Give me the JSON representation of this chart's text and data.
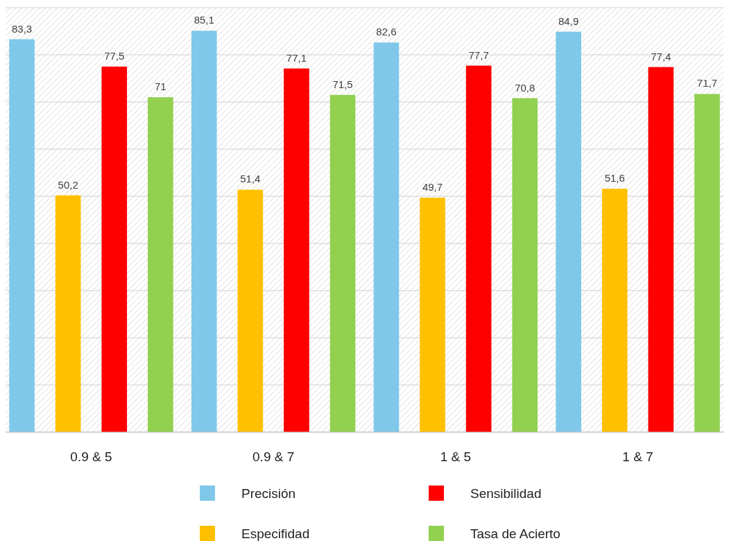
{
  "chart_data": {
    "type": "bar",
    "categories": [
      "0.9 & 5",
      "0.9 & 7",
      "1 & 5",
      "1 & 7"
    ],
    "series": [
      {
        "name": "Precisión",
        "color": "#7fc8ea",
        "values": [
          83.3,
          85.1,
          82.6,
          84.9
        ],
        "value_labels": [
          "83,3",
          "85,1",
          "82,6",
          "84,9"
        ]
      },
      {
        "name": "Especifidad",
        "color": "#ffc000",
        "values": [
          50.2,
          51.4,
          49.7,
          51.6
        ],
        "value_labels": [
          "50,2",
          "51,4",
          "49,7",
          "51,6"
        ]
      },
      {
        "name": "Sensibilidad",
        "color": "#ff0000",
        "values": [
          77.5,
          77.1,
          77.7,
          77.4
        ],
        "value_labels": [
          "77,5",
          "77,1",
          "77,7",
          "77,4"
        ]
      },
      {
        "name": "Tasa de Acierto",
        "color": "#92d050",
        "values": [
          71,
          71.5,
          70.8,
          71.7
        ],
        "value_labels": [
          "71",
          "71,5",
          "70,8",
          "71,7"
        ]
      }
    ],
    "ylim": [
      0,
      90
    ],
    "yticks": [
      {
        "value": 0,
        "label": null
      },
      {
        "value": 10,
        "label": null
      },
      {
        "value": 20,
        "label": null
      },
      {
        "value": 30,
        "label": null
      },
      {
        "value": 40,
        "label": null
      },
      {
        "value": 50,
        "label": null
      },
      {
        "value": 60,
        "label": null
      },
      {
        "value": 70,
        "label": null
      },
      {
        "value": 80,
        "label": null
      },
      {
        "value": 90,
        "label": null
      }
    ],
    "tick_labels": "x",
    "grid": "y",
    "legend": "bottom"
  }
}
